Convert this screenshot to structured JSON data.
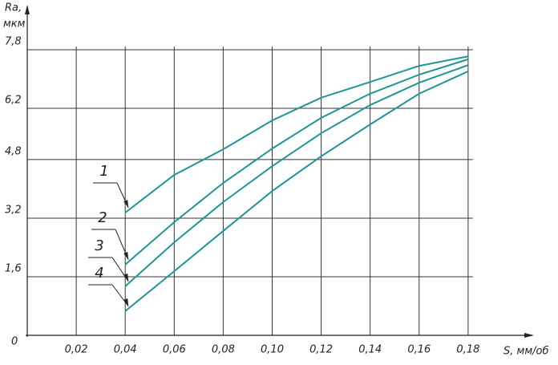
{
  "chart_data": {
    "type": "line",
    "y_label": "Ra,",
    "y_unit": "мкм",
    "x_label": "S, мм/об",
    "x": [
      0.04,
      0.06,
      0.08,
      0.1,
      0.12,
      0.14,
      0.16,
      0.18
    ],
    "series": [
      {
        "name": "1",
        "color": "#1f9595",
        "values": [
          3.35,
          4.38,
          5.08,
          5.87,
          6.49,
          6.92,
          7.36,
          7.62
        ]
      },
      {
        "name": "2",
        "color": "#1f9595",
        "values": [
          1.93,
          3.09,
          4.16,
          5.1,
          5.94,
          6.6,
          7.12,
          7.54
        ]
      },
      {
        "name": "3",
        "color": "#1f9595",
        "values": [
          1.34,
          2.54,
          3.64,
          4.62,
          5.52,
          6.29,
          6.9,
          7.38
        ]
      },
      {
        "name": "4",
        "color": "#1f9595",
        "values": [
          0.66,
          1.75,
          2.85,
          3.94,
          4.89,
          5.76,
          6.6,
          7.21
        ]
      }
    ],
    "xlim": [
      0,
      0.2
    ],
    "ylim": [
      0,
      8.4
    ],
    "xticks": [
      {
        "value": 0.02,
        "label": "0,02"
      },
      {
        "value": 0.04,
        "label": "0,04"
      },
      {
        "value": 0.06,
        "label": "0,06"
      },
      {
        "value": 0.08,
        "label": "0,08"
      },
      {
        "value": 0.1,
        "label": "0,10"
      },
      {
        "value": 0.12,
        "label": "0,12"
      },
      {
        "value": 0.14,
        "label": "0,14"
      },
      {
        "value": 0.16,
        "label": "0,16"
      },
      {
        "value": 0.18,
        "label": "0,18"
      }
    ],
    "yticks": [
      0,
      {
        "value": 1.6,
        "label": "1,6"
      },
      {
        "value": 3.2,
        "label": "3,2"
      },
      {
        "value": 4.8,
        "label": "4,8"
      },
      {
        "value": 6.2,
        "label": "6,2"
      },
      {
        "value": 7.8,
        "label": "7,8"
      }
    ],
    "grid": true
  }
}
